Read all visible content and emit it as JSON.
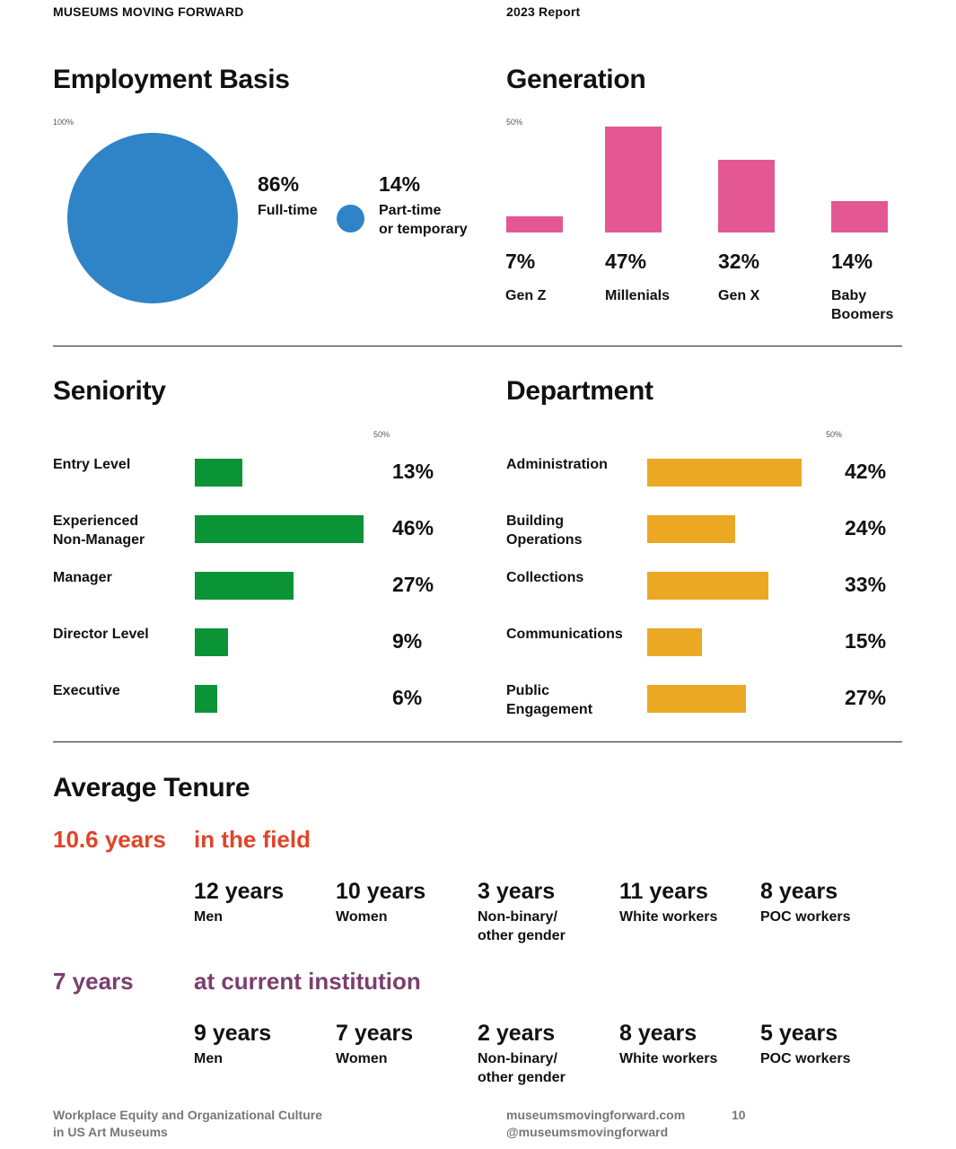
{
  "header": {
    "left": "MUSEUMS MOVING FORWARD",
    "right": "2023 Report"
  },
  "employment": {
    "title": "Employment Basis",
    "axis_note": "100%",
    "color": "#2e84c6",
    "items": [
      {
        "pct": "86%",
        "label": "Full-time",
        "value": 86
      },
      {
        "pct": "14%",
        "label_line1": "Part-time",
        "label_line2": "or temporary",
        "value": 14
      }
    ]
  },
  "generation": {
    "title": "Generation",
    "axis_note": "50%",
    "color": "#e35892",
    "items": [
      {
        "pct": "7%",
        "label": "Gen Z",
        "value": 7
      },
      {
        "pct": "47%",
        "label": "Millenials",
        "value": 47
      },
      {
        "pct": "32%",
        "label": "Gen X",
        "value": 32
      },
      {
        "pct": "14%",
        "label_line1": "Baby",
        "label_line2": "Boomers",
        "value": 14
      }
    ]
  },
  "seniority": {
    "title": "Seniority",
    "axis_note": "50%",
    "color": "#0a9435",
    "items": [
      {
        "label_line1": "Entry Level",
        "label_line2": "",
        "pct": "13%",
        "value": 13
      },
      {
        "label_line1": "Experienced",
        "label_line2": "Non-Manager",
        "pct": "46%",
        "value": 46
      },
      {
        "label_line1": "Manager",
        "label_line2": "",
        "pct": "27%",
        "value": 27
      },
      {
        "label_line1": "Director Level",
        "label_line2": "",
        "pct": "9%",
        "value": 9
      },
      {
        "label_line1": "Executive",
        "label_line2": "",
        "pct": "6%",
        "value": 6
      }
    ]
  },
  "department": {
    "title": "Department",
    "axis_note": "50%",
    "color": "#eba823",
    "items": [
      {
        "label_line1": "Administration",
        "label_line2": "",
        "pct": "42%",
        "value": 42
      },
      {
        "label_line1": "Building",
        "label_line2": "Operations",
        "pct": "24%",
        "value": 24
      },
      {
        "label_line1": "Collections",
        "label_line2": "",
        "pct": "33%",
        "value": 33
      },
      {
        "label_line1": "Communications",
        "label_line2": "",
        "pct": "15%",
        "value": 15
      },
      {
        "label_line1": "Public",
        "label_line2": "Engagement",
        "pct": "27%",
        "value": 27
      }
    ]
  },
  "tenure": {
    "title": "Average Tenure",
    "field": {
      "headline": "10.6 years",
      "label": "in the field",
      "color": "#e04429",
      "items": [
        {
          "value": "12 years",
          "label_line1": "Men",
          "label_line2": ""
        },
        {
          "value": "10 years",
          "label_line1": "Women",
          "label_line2": ""
        },
        {
          "value": "3 years",
          "label_line1": "Non-binary/",
          "label_line2": "other gender"
        },
        {
          "value": "11 years",
          "label_line1": "White workers",
          "label_line2": ""
        },
        {
          "value": "8 years",
          "label_line1": "POC workers",
          "label_line2": ""
        }
      ]
    },
    "institution": {
      "headline": "7 years",
      "label": "at current institution",
      "color": "#7b3f6e",
      "items": [
        {
          "value": "9 years",
          "label_line1": "Men",
          "label_line2": ""
        },
        {
          "value": "7 years",
          "label_line1": "Women",
          "label_line2": ""
        },
        {
          "value": "2 years",
          "label_line1": "Non-binary/",
          "label_line2": "other gender"
        },
        {
          "value": "8 years",
          "label_line1": "White workers",
          "label_line2": ""
        },
        {
          "value": "5 years",
          "label_line1": "POC workers",
          "label_line2": ""
        }
      ]
    }
  },
  "footer": {
    "left_line1": "Workplace Equity and Organizational Culture",
    "left_line2": "in US Art Museums",
    "right_line1": "museumsmovingforward.com",
    "right_line2": "@museumsmovingforward",
    "page_number": "10"
  }
}
